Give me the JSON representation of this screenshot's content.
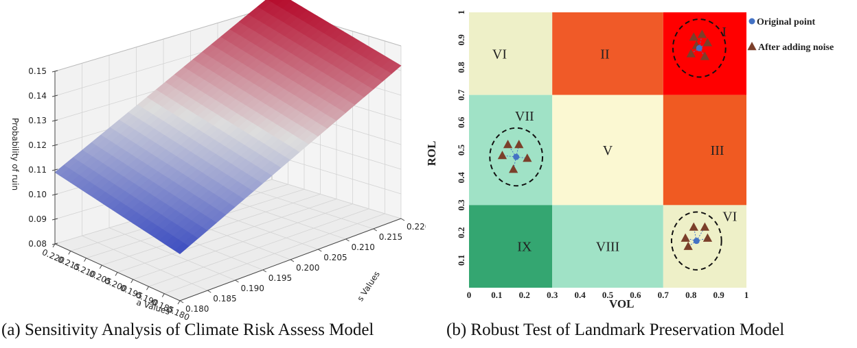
{
  "captions": {
    "a": "(a) Sensitivity Analysis of Climate Risk Assess Model",
    "b": "(b) Robust Test of Landmark Preservation Model"
  },
  "chart_data": [
    {
      "type": "surface",
      "title": "",
      "xlabel": "a Values",
      "ylabel": "s Values",
      "zlabel": "Probability of ruin",
      "a_ticks": [
        "0.220",
        "0.215",
        "0.210",
        "0.205",
        "0.200",
        "0.195",
        "0.190",
        "0.185",
        "0.180"
      ],
      "s_ticks": [
        "0.180",
        "0.185",
        "0.190",
        "0.195",
        "0.200",
        "0.205",
        "0.210",
        "0.215",
        "0.220"
      ],
      "z_ticks": [
        "0.08",
        "0.09",
        "0.10",
        "0.11",
        "0.12",
        "0.13",
        "0.14",
        "0.15"
      ],
      "xlim": [
        0.18,
        0.22
      ],
      "ylim": [
        0.18,
        0.22
      ],
      "zlim": [
        0.08,
        0.15
      ],
      "surface_corners": [
        {
          "a": 0.22,
          "s": 0.18,
          "p": 0.109
        },
        {
          "a": 0.18,
          "s": 0.18,
          "p": 0.099
        },
        {
          "a": 0.18,
          "s": 0.22,
          "p": 0.142
        },
        {
          "a": 0.22,
          "s": 0.22,
          "p": 0.149
        }
      ],
      "colormap": [
        "#3b4cc0",
        "#dddddd",
        "#b40426"
      ],
      "grid": true
    },
    {
      "type": "region_map",
      "title": "",
      "xlabel": "VOL",
      "ylabel": "ROL",
      "xlim": [
        0,
        1
      ],
      "ylim": [
        0,
        1
      ],
      "x_ticks": [
        "0",
        "0.1",
        "0.2",
        "0.3",
        "0.4",
        "0.5",
        "0.6",
        "0.7",
        "0.8",
        "0.9",
        "1"
      ],
      "y_ticks": [
        "0.1",
        "0.2",
        "0.3",
        "0.4",
        "0.5",
        "0.6",
        "0.7",
        "0.8",
        "0.9",
        "1"
      ],
      "regions": [
        {
          "label": "VI",
          "x": [
            0,
            0.3
          ],
          "y": [
            0.7,
            1
          ],
          "color": "#eef0c8"
        },
        {
          "label": "II",
          "x": [
            0.3,
            0.7
          ],
          "y": [
            0.7,
            1
          ],
          "color": "#f05a28"
        },
        {
          "label": "I",
          "x": [
            0.7,
            1
          ],
          "y": [
            0.7,
            1
          ],
          "color": "#ff0000"
        },
        {
          "label": "VII",
          "x": [
            0,
            0.3
          ],
          "y": [
            0.3,
            0.7
          ],
          "color": "#a0e2c6"
        },
        {
          "label": "V",
          "x": [
            0.3,
            0.7
          ],
          "y": [
            0.3,
            0.7
          ],
          "color": "#fbf8d2"
        },
        {
          "label": "III",
          "x": [
            0.7,
            1
          ],
          "y": [
            0.3,
            0.7
          ],
          "color": "#f05a22"
        },
        {
          "label": "IX",
          "x": [
            0,
            0.3
          ],
          "y": [
            0,
            0.3
          ],
          "color": "#34a671"
        },
        {
          "label": "VIII",
          "x": [
            0.3,
            0.7
          ],
          "y": [
            0,
            0.3
          ],
          "color": "#a0e2c6"
        },
        {
          "label": "VI",
          "x": [
            0.7,
            1
          ],
          "y": [
            0,
            0.3
          ],
          "color": "#eef0c8"
        }
      ],
      "legend": {
        "placement": "right",
        "original": "Original point",
        "noise": "After adding noise",
        "original_color": "#4472c4",
        "noise_color": "#7b3f2a"
      },
      "clusters": [
        {
          "original": [
            0.83,
            0.87
          ],
          "noise": [
            [
              0.81,
              0.91
            ],
            [
              0.84,
              0.92
            ],
            [
              0.86,
              0.89
            ],
            [
              0.8,
              0.85
            ],
            [
              0.85,
              0.84
            ],
            [
              0.82,
              0.88
            ]
          ],
          "circle_radius": [
            0.095,
            0.105
          ]
        },
        {
          "original": [
            0.17,
            0.475
          ],
          "noise": [
            [
              0.14,
              0.52
            ],
            [
              0.18,
              0.52
            ],
            [
              0.12,
              0.48
            ],
            [
              0.21,
              0.47
            ],
            [
              0.16,
              0.43
            ]
          ],
          "circle_radius": [
            0.095,
            0.105
          ]
        },
        {
          "original": [
            0.82,
            0.17
          ],
          "noise": [
            [
              0.81,
              0.22
            ],
            [
              0.85,
              0.22
            ],
            [
              0.78,
              0.18
            ],
            [
              0.86,
              0.18
            ],
            [
              0.79,
              0.15
            ]
          ],
          "circle_radius": [
            0.09,
            0.105
          ]
        }
      ]
    }
  ]
}
